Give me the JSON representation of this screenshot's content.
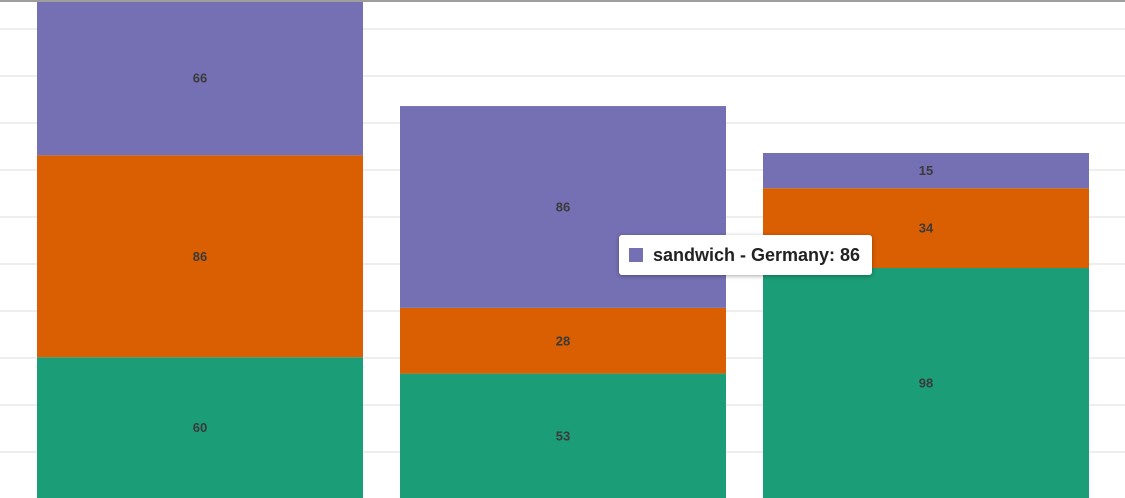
{
  "chart_data": {
    "type": "bar",
    "stacked": true,
    "orientation": "vertical",
    "categories": [
      "",
      "Germany",
      ""
    ],
    "series": [
      {
        "name": "",
        "color": "#1b9e77",
        "values": [
          60,
          53,
          98
        ]
      },
      {
        "name": "",
        "color": "#d95f02",
        "values": [
          86,
          28,
          34
        ]
      },
      {
        "name": "sandwich",
        "color": "#7570b3",
        "values": [
          66,
          86,
          15
        ]
      }
    ],
    "grid": true,
    "show_values": true,
    "legend": "none"
  },
  "tooltip": {
    "text": "sandwich - Germany: 86",
    "color": "#7570b3"
  }
}
